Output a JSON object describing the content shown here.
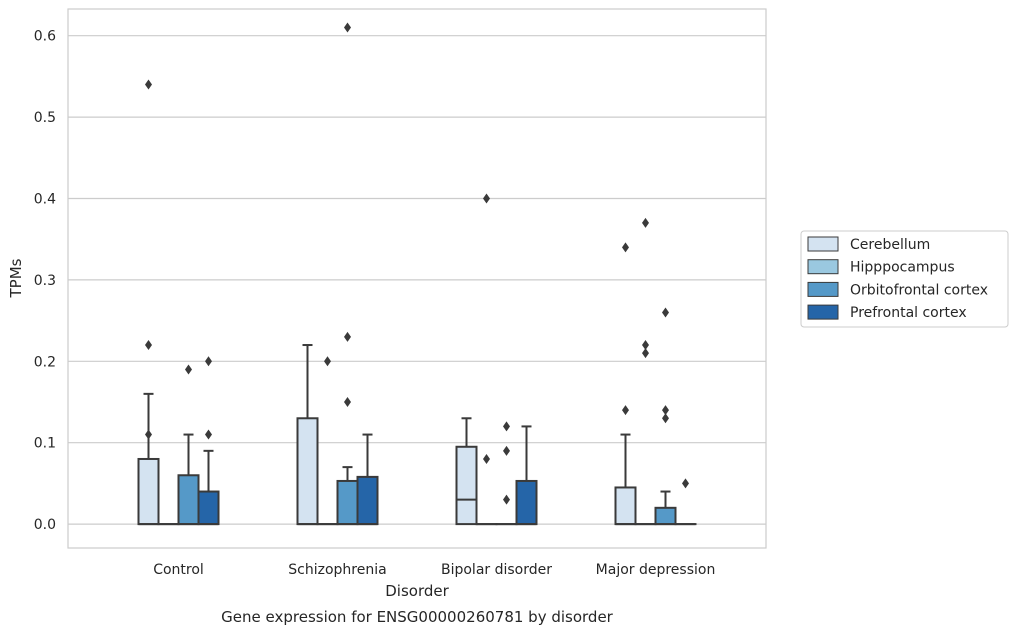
{
  "chart_data": {
    "type": "box",
    "title": "",
    "caption": "Gene expression for ENSG00000260781 by disorder",
    "xlabel": "Disorder",
    "ylabel": "TPMs",
    "ylim": [
      -0.03,
      0.64
    ],
    "yticks": [
      0.0,
      0.1,
      0.2,
      0.3,
      0.4,
      0.5,
      0.6
    ],
    "ytick_labels": [
      "0.0",
      "0.1",
      "0.2",
      "0.3",
      "0.4",
      "0.5",
      "0.6"
    ],
    "grid": "horizontal",
    "legend_position": "right",
    "categories": [
      "Control",
      "Schizophrenia",
      "Bipolar disorder",
      "Major depression"
    ],
    "series": [
      {
        "name": "Cerebellum",
        "color": "#d4e3f1",
        "boxes": [
          {
            "q1": 0.0,
            "median": 0.0,
            "q3": 0.08,
            "whisker_low": 0.0,
            "whisker_high": 0.16,
            "outliers": [
              0.11,
              0.22,
              0.54
            ]
          },
          {
            "q1": 0.0,
            "median": 0.0,
            "q3": 0.13,
            "whisker_low": 0.0,
            "whisker_high": 0.22,
            "outliers": []
          },
          {
            "q1": 0.0,
            "median": 0.03,
            "q3": 0.095,
            "whisker_low": 0.0,
            "whisker_high": 0.13,
            "outliers": []
          },
          {
            "q1": 0.0,
            "median": 0.0,
            "q3": 0.045,
            "whisker_low": 0.0,
            "whisker_high": 0.11,
            "outliers": [
              0.14,
              0.34
            ]
          }
        ]
      },
      {
        "name": "Hipppocampus",
        "color": "#9ac8e0",
        "boxes": [
          {
            "q1": 0.0,
            "median": 0.0,
            "q3": 0.0,
            "whisker_low": 0.0,
            "whisker_high": 0.0,
            "outliers": []
          },
          {
            "q1": 0.0,
            "median": 0.0,
            "q3": 0.0,
            "whisker_low": 0.0,
            "whisker_high": 0.0,
            "outliers": [
              0.2
            ]
          },
          {
            "q1": 0.0,
            "median": 0.0,
            "q3": 0.0,
            "whisker_low": 0.0,
            "whisker_high": 0.0,
            "outliers": [
              0.08,
              0.4
            ]
          },
          {
            "q1": 0.0,
            "median": 0.0,
            "q3": 0.0,
            "whisker_low": 0.0,
            "whisker_high": 0.0,
            "outliers": [
              0.21,
              0.22,
              0.37
            ]
          }
        ]
      },
      {
        "name": "Orbitofrontal cortex",
        "color": "#5599c8",
        "boxes": [
          {
            "q1": 0.0,
            "median": 0.0,
            "q3": 0.06,
            "whisker_low": 0.0,
            "whisker_high": 0.11,
            "outliers": [
              0.19
            ]
          },
          {
            "q1": 0.0,
            "median": 0.0,
            "q3": 0.053,
            "whisker_low": 0.0,
            "whisker_high": 0.07,
            "outliers": [
              0.15,
              0.23,
              0.61
            ]
          },
          {
            "q1": 0.0,
            "median": 0.0,
            "q3": 0.0,
            "whisker_low": 0.0,
            "whisker_high": 0.0,
            "outliers": [
              0.03,
              0.09,
              0.12
            ]
          },
          {
            "q1": 0.0,
            "median": 0.0,
            "q3": 0.02,
            "whisker_low": 0.0,
            "whisker_high": 0.04,
            "outliers": [
              0.13,
              0.14,
              0.26
            ]
          }
        ]
      },
      {
        "name": "Prefrontal cortex",
        "color": "#2565a8",
        "boxes": [
          {
            "q1": 0.0,
            "median": 0.0,
            "q3": 0.04,
            "whisker_low": 0.0,
            "whisker_high": 0.09,
            "outliers": [
              0.11,
              0.2
            ]
          },
          {
            "q1": 0.0,
            "median": 0.0,
            "q3": 0.058,
            "whisker_low": 0.0,
            "whisker_high": 0.11,
            "outliers": []
          },
          {
            "q1": 0.0,
            "median": 0.0,
            "q3": 0.053,
            "whisker_low": 0.0,
            "whisker_high": 0.12,
            "outliers": []
          },
          {
            "q1": 0.0,
            "median": 0.0,
            "q3": 0.0,
            "whisker_low": 0.0,
            "whisker_high": 0.0,
            "outliers": [
              0.05
            ]
          }
        ]
      }
    ]
  }
}
